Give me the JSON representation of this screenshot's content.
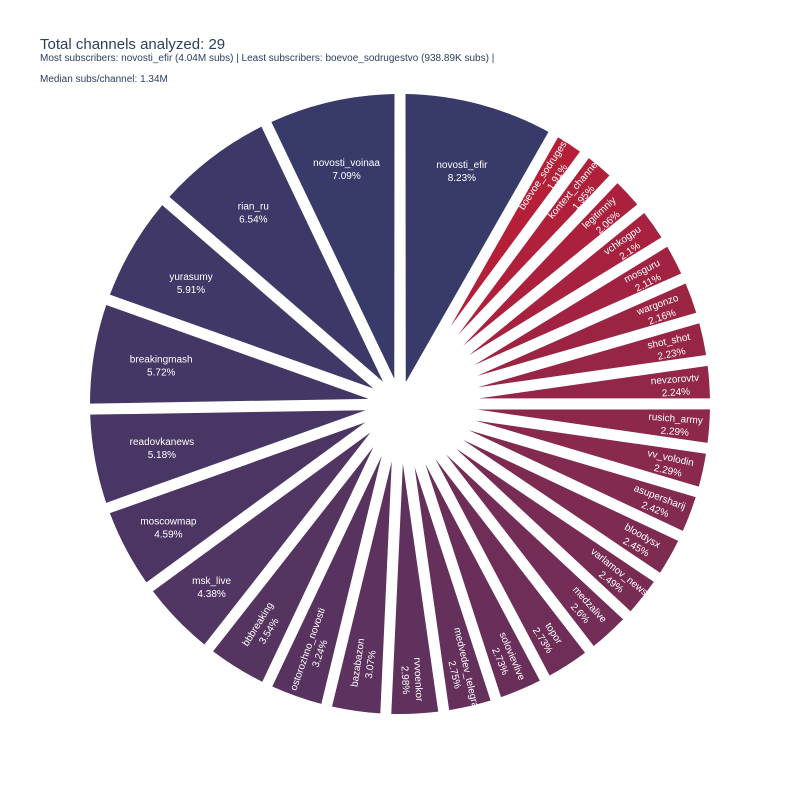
{
  "chart_data": {
    "type": "pie",
    "title": "Total channels analyzed: 29",
    "subtitle": "Most subscribers: novosti_efir (4.04M subs) | Least subscribers: boevoe_sodrugestvo (938.89K subs) |",
    "subtitle2": "Median subs/channel: 1.34M",
    "hole": true,
    "colors": {
      "dark": "#383a69",
      "mid": "#6a2f5a",
      "red": "#b51f38"
    },
    "slices": [
      {
        "label": "novosti_efir",
        "pct": "8.23%",
        "value": 8.23
      },
      {
        "label": "boevoe_sodrugestvo",
        "pct": "1.91%",
        "value": 1.91
      },
      {
        "label": "kontext_channel",
        "pct": "1.95%",
        "value": 1.95
      },
      {
        "label": "legitimniy",
        "pct": "2.06%",
        "value": 2.06
      },
      {
        "label": "vchkogpu",
        "pct": "2.1%",
        "value": 2.1
      },
      {
        "label": "mosguru",
        "pct": "2.11%",
        "value": 2.11
      },
      {
        "label": "wargonzo",
        "pct": "2.16%",
        "value": 2.16
      },
      {
        "label": "shot_shot",
        "pct": "2.23%",
        "value": 2.23
      },
      {
        "label": "nevzorovtv",
        "pct": "2.24%",
        "value": 2.24
      },
      {
        "label": "rusich_army",
        "pct": "2.29%",
        "value": 2.29
      },
      {
        "label": "vv_volodin",
        "pct": "2.29%",
        "value": 2.29
      },
      {
        "label": "asupersharij",
        "pct": "2.42%",
        "value": 2.42
      },
      {
        "label": "bloodysx",
        "pct": "2.45%",
        "value": 2.45
      },
      {
        "label": "varlamov_news",
        "pct": "2.49%",
        "value": 2.49
      },
      {
        "label": "medzalive",
        "pct": "2.6%",
        "value": 2.6
      },
      {
        "label": "topor",
        "pct": "2.73%",
        "value": 2.73
      },
      {
        "label": "solovievlive",
        "pct": "2.73%",
        "value": 2.73
      },
      {
        "label": "medvedev_telegram",
        "pct": "2.75%",
        "value": 2.75
      },
      {
        "label": "rvvoenkor",
        "pct": "2.98%",
        "value": 2.98
      },
      {
        "label": "bazabazon",
        "pct": "3.07%",
        "value": 3.07
      },
      {
        "label": "ostorozhno_novosti",
        "pct": "3.24%",
        "value": 3.24
      },
      {
        "label": "bbbreaking",
        "pct": "3.54%",
        "value": 3.54
      },
      {
        "label": "msk_live",
        "pct": "4.38%",
        "value": 4.38
      },
      {
        "label": "moscowmap",
        "pct": "4.59%",
        "value": 4.59
      },
      {
        "label": "readovkanews",
        "pct": "5.18%",
        "value": 5.18
      },
      {
        "label": "breakingmash",
        "pct": "5.72%",
        "value": 5.72
      },
      {
        "label": "yurasumy",
        "pct": "5.91%",
        "value": 5.91
      },
      {
        "label": "rian_ru",
        "pct": "6.54%",
        "value": 6.54
      },
      {
        "label": "novosti_voinaa",
        "pct": "7.09%",
        "value": 7.09
      }
    ]
  }
}
